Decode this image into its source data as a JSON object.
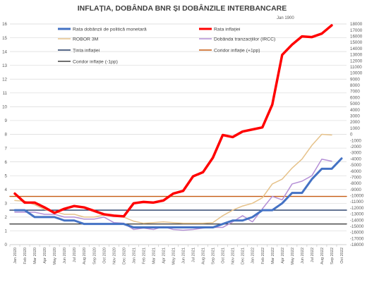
{
  "chart_data": {
    "type": "line",
    "title": "INFLAȚIA, DOBÂNDA BNR ȘI DOBÂNZILE INTERBANCARE",
    "axis_note": "Jan 1900",
    "x_categories": [
      "Jan 2020",
      "Feb 2020",
      "Mar 2020",
      "Apr 2020",
      "May 2020",
      "Jun 2020",
      "Jul 2020",
      "Aug 2020",
      "Sep 2020",
      "Oct 2020",
      "Nov 2020",
      "Dec 2020",
      "Jan 2021",
      "Feb 2021",
      "Mar 2021",
      "Apr 2021",
      "May 2021",
      "Jun 2021",
      "Jul 2021",
      "Aug 2021",
      "Sep 2021",
      "Oct 2021",
      "Nov 2021",
      "Dec 2021",
      "Jan 2022",
      "Feb 2022",
      "Mar 2022",
      "Apr 2022",
      "May 2022",
      "Jun 2022",
      "Jul 2022",
      "Aug 2022",
      "Sep 2022",
      "Oct 2022"
    ],
    "x_tick_labels": [
      "Jan 2020",
      "Feb 2020",
      "Mar 2020",
      "Apr 2020",
      "May 2020",
      "Jun 2020",
      "Jul 2020",
      "Aug 2020",
      "Sep 2020",
      "Oct 2020",
      "Nov 2020",
      "Dec 2020",
      "Jan 2021",
      "Feb 2021",
      "Mar 2021",
      "Apr 2021",
      "May 2021",
      "Jun 2021",
      "Jul 2021",
      "Aug 2021",
      "Sep 2021",
      "Oct 2021",
      "Nov 2021",
      "Dec 2021",
      "Jan 2022",
      "Feb 2022",
      "Mar 2022",
      "Apr 2022",
      "May 2022",
      "Jun 2022",
      "Jul 2022",
      "Aug 2022",
      "Sep 2022",
      "Oct 2022"
    ],
    "y_left": {
      "min": 0,
      "max": 16,
      "ticks": [
        "0",
        "1",
        "2",
        "3",
        "4",
        "5",
        "6",
        "7",
        "8",
        "9",
        "10",
        "11",
        "12",
        "13",
        "14",
        "15",
        "16"
      ]
    },
    "y_right": {
      "min": -18000,
      "max": 18000,
      "ticks": [
        "18000",
        "17000",
        "16000",
        "15000",
        "14000",
        "13000",
        "12000",
        "11000",
        "10000",
        "9000",
        "8000",
        "7000",
        "6000",
        "5000",
        "4000",
        "3000",
        "2000",
        "1000",
        "0",
        "-1000",
        "-2000",
        "-3000",
        "-4000",
        "-5000",
        "-6000",
        "-7000",
        "-8000",
        "-9000",
        "-10000",
        "-11000",
        "-12000",
        "-13000",
        "-14000",
        "-15000",
        "-16000",
        "-17000",
        "-18000"
      ]
    },
    "grid": true,
    "legend_position": "top",
    "series": [
      {
        "name": "Rata dobânzii de politică monetară",
        "color": "#4472c4",
        "width": 3,
        "values": [
          2.5,
          2.5,
          2.0,
          2.0,
          2.0,
          1.75,
          1.75,
          1.5,
          1.5,
          1.5,
          1.5,
          1.5,
          1.25,
          1.25,
          1.25,
          1.25,
          1.25,
          1.25,
          1.25,
          1.25,
          1.25,
          1.5,
          1.75,
          1.75,
          2.0,
          2.5,
          2.5,
          3.0,
          3.75,
          3.75,
          4.75,
          5.5,
          5.5,
          6.25
        ]
      },
      {
        "name": "Rata inflației",
        "color": "#ff0000",
        "width": 3.5,
        "values": [
          3.7,
          3.05,
          3.05,
          2.7,
          2.3,
          2.6,
          2.8,
          2.7,
          2.45,
          2.2,
          2.1,
          2.05,
          3.0,
          3.1,
          3.05,
          3.2,
          3.7,
          3.9,
          4.95,
          5.25,
          6.3,
          7.95,
          7.8,
          8.2,
          8.35,
          8.5,
          10.15,
          13.76,
          14.5,
          15.1,
          15.05,
          15.3,
          15.9,
          null
        ]
      },
      {
        "name": "ROBOR 3M",
        "color": "#e6c28a",
        "width": 1.5,
        "values": [
          3.2,
          3.15,
          2.9,
          2.55,
          2.4,
          2.2,
          2.2,
          2.0,
          2.0,
          2.15,
          2.1,
          2.0,
          1.7,
          1.55,
          1.6,
          1.65,
          1.6,
          1.55,
          1.55,
          1.55,
          1.6,
          2.1,
          2.5,
          2.8,
          3.0,
          3.4,
          4.4,
          4.75,
          5.55,
          6.2,
          7.2,
          8.0,
          7.95,
          null
        ]
      },
      {
        "name": "Dobânda tranzacțiilor (IRCC)",
        "color": "#b48fd6",
        "width": 1.5,
        "values": [
          2.35,
          2.35,
          2.35,
          2.2,
          2.2,
          2.0,
          2.0,
          1.85,
          1.85,
          2.0,
          1.6,
          1.55,
          1.1,
          1.2,
          1.1,
          1.3,
          1.1,
          1.05,
          1.1,
          1.2,
          1.25,
          1.25,
          1.65,
          2.1,
          1.65,
          2.6,
          3.5,
          3.25,
          4.4,
          4.6,
          5.0,
          6.2,
          6.05,
          null
        ]
      },
      {
        "name": "Ținta inflației",
        "color": "#203864",
        "width": 1.4,
        "constant": 2.5
      },
      {
        "name": "Coridor inflație (+1pp)",
        "color": "#c55a11",
        "width": 1.4,
        "constant": 3.5
      },
      {
        "name": "Coridor inflație (-1pp)",
        "color": "#404040",
        "width": 1.4,
        "constant": 1.5
      }
    ]
  }
}
